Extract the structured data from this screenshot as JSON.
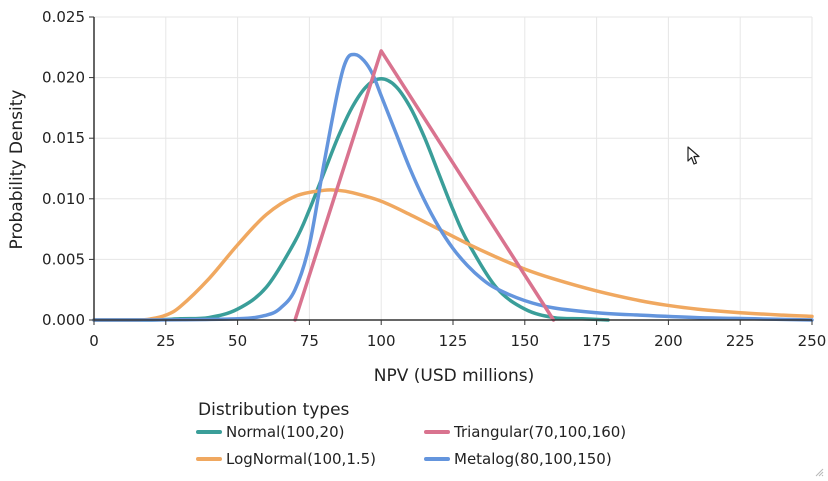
{
  "chart_data": {
    "type": "line",
    "title": "",
    "xlabel": "NPV (USD millions)",
    "ylabel": "Probability Density",
    "xlim": [
      0,
      250
    ],
    "ylim": [
      0,
      0.025
    ],
    "xticks": [
      0,
      25,
      50,
      75,
      100,
      125,
      150,
      175,
      200,
      225,
      250
    ],
    "yticks": [
      0.0,
      0.005,
      0.01,
      0.015,
      0.02,
      0.025
    ],
    "ytick_labels": [
      "0.000",
      "0.005",
      "0.010",
      "0.015",
      "0.020",
      "0.025"
    ],
    "grid": true,
    "legend": {
      "title": "Distribution types",
      "position": "bottom-left"
    },
    "series": [
      {
        "name": "Normal(100,20)",
        "color": "#3a9e99",
        "x": [
          0,
          20,
          30,
          40,
          50,
          60,
          70,
          75,
          80,
          85,
          90,
          95,
          100,
          105,
          110,
          115,
          120,
          125,
          130,
          140,
          150,
          160,
          170,
          179
        ],
        "y": [
          0.0,
          0.0,
          0.0001,
          0.0002,
          0.0009,
          0.0027,
          0.0065,
          0.0091,
          0.0121,
          0.0151,
          0.0176,
          0.0193,
          0.0199,
          0.0193,
          0.0176,
          0.0151,
          0.0121,
          0.0091,
          0.0065,
          0.0027,
          0.0009,
          0.0002,
          0.0001,
          0.0
        ]
      },
      {
        "name": "LogNormal(100,1.5)",
        "color": "#f0a860",
        "x": [
          0,
          15,
          20,
          25,
          30,
          40,
          50,
          60,
          70,
          80,
          85,
          90,
          100,
          110,
          120,
          130,
          140,
          150,
          160,
          175,
          190,
          200,
          210,
          225,
          240,
          250
        ],
        "y": [
          0.0,
          0.0,
          0.0001,
          0.0004,
          0.0011,
          0.0034,
          0.0062,
          0.0087,
          0.0102,
          0.0107,
          0.0107,
          0.0105,
          0.0098,
          0.0087,
          0.0075,
          0.0063,
          0.0052,
          0.0042,
          0.0034,
          0.0024,
          0.0016,
          0.0012,
          0.0009,
          0.0006,
          0.0004,
          0.0003
        ]
      },
      {
        "name": "Triangular(70,100,160)",
        "color": "#d9738f",
        "x": [
          70,
          100,
          160
        ],
        "y": [
          0.0,
          0.0222,
          0.0
        ]
      },
      {
        "name": "Metalog(80,100,150)",
        "color": "#6495dd",
        "x": [
          0,
          20,
          50,
          60,
          65,
          70,
          75,
          80,
          85,
          88,
          91,
          94,
          97,
          100,
          105,
          110,
          115,
          120,
          125,
          130,
          135,
          140,
          150,
          160,
          175,
          190,
          210,
          230,
          250
        ],
        "y": [
          0.0,
          0.0,
          0.0001,
          0.0004,
          0.001,
          0.0025,
          0.0062,
          0.0128,
          0.019,
          0.0215,
          0.0219,
          0.0214,
          0.0203,
          0.0185,
          0.0155,
          0.0125,
          0.0099,
          0.0077,
          0.0059,
          0.0045,
          0.0034,
          0.0026,
          0.0016,
          0.001,
          0.0006,
          0.0004,
          0.0002,
          0.0001,
          0.0
        ]
      }
    ]
  },
  "icons": {
    "cursor": "mouse-pointer-icon",
    "grip": "resize-grip-icon"
  }
}
